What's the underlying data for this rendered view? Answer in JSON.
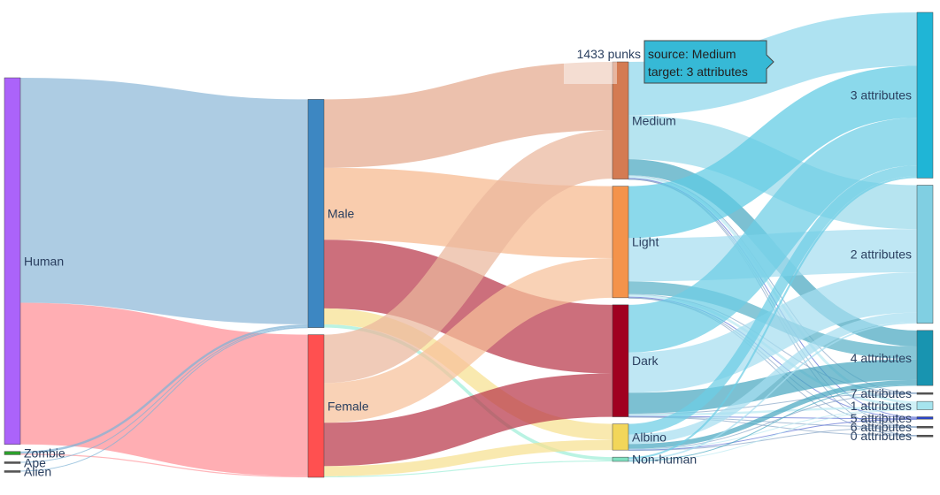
{
  "chart_data": {
    "type": "sankey",
    "value_unit": "punks",
    "nodes": [
      {
        "id": "human",
        "label": "Human",
        "column": 0,
        "color": "#ab63fa"
      },
      {
        "id": "zombie",
        "label": "Zombie",
        "column": 0,
        "color": "#2ca02c"
      },
      {
        "id": "ape",
        "label": "Ape",
        "column": 0,
        "color": "#555555"
      },
      {
        "id": "alien",
        "label": "Alien",
        "column": 0,
        "color": "#555555"
      },
      {
        "id": "male",
        "label": "Male",
        "column": 1,
        "color": "#3d87c2"
      },
      {
        "id": "female",
        "label": "Female",
        "column": 1,
        "color": "#ff5050"
      },
      {
        "id": "medium",
        "label": "Medium",
        "column": 2,
        "color": "#d47b52"
      },
      {
        "id": "light",
        "label": "Light",
        "column": 2,
        "color": "#f4934b"
      },
      {
        "id": "dark",
        "label": "Dark",
        "column": 2,
        "color": "#a00020"
      },
      {
        "id": "albino",
        "label": "Albino",
        "column": 2,
        "color": "#f2d65a"
      },
      {
        "id": "nonhuman",
        "label": "Non-human",
        "column": 2,
        "color": "#7fe0c0"
      },
      {
        "id": "a3",
        "label": "3 attributes",
        "column": 3,
        "color": "#1fb5d6"
      },
      {
        "id": "a2",
        "label": "2 attributes",
        "column": 3,
        "color": "#80cfe2"
      },
      {
        "id": "a4",
        "label": "4 attributes",
        "column": 3,
        "color": "#1894b0"
      },
      {
        "id": "a7",
        "label": "7 attributes",
        "column": 3,
        "color": "#555555"
      },
      {
        "id": "a1",
        "label": "1 attributes",
        "column": 3,
        "color": "#a6e4ee"
      },
      {
        "id": "a5",
        "label": "5 attributes",
        "column": 3,
        "color": "#2a44c8"
      },
      {
        "id": "a6",
        "label": "6 attributes",
        "column": 3,
        "color": "#555555"
      },
      {
        "id": "a0",
        "label": "0 attributes",
        "column": 3,
        "color": "#555555"
      }
    ],
    "links": [
      {
        "source": "human",
        "target": "male",
        "value": 6039,
        "color": "#8db9d8"
      },
      {
        "source": "human",
        "target": "female",
        "value": 3801,
        "color": "#ff8f95"
      },
      {
        "source": "zombie",
        "target": "male",
        "value": 60,
        "color": "#7fb3d5"
      },
      {
        "source": "zombie",
        "target": "female",
        "value": 28,
        "color": "#ff9aa0"
      },
      {
        "source": "ape",
        "target": "male",
        "value": 18,
        "color": "#7fb3d5"
      },
      {
        "source": "alien",
        "target": "male",
        "value": 9,
        "color": "#7fb3d5"
      },
      {
        "source": "male",
        "target": "medium",
        "value": 1837,
        "color": "#e4a98d"
      },
      {
        "source": "male",
        "target": "light",
        "value": 1930,
        "color": "#f6b98e"
      },
      {
        "source": "male",
        "target": "dark",
        "value": 1843,
        "color": "#b8374a"
      },
      {
        "source": "male",
        "target": "albino",
        "value": 429,
        "color": "#f6e190"
      },
      {
        "source": "male",
        "target": "nonhuman",
        "value": 87,
        "color": "#9fefd8"
      },
      {
        "source": "female",
        "target": "medium",
        "value": 1299,
        "color": "#eab79c"
      },
      {
        "source": "female",
        "target": "light",
        "value": 1066,
        "color": "#f7c19a"
      },
      {
        "source": "female",
        "target": "dark",
        "value": 1163,
        "color": "#b8374a"
      },
      {
        "source": "female",
        "target": "albino",
        "value": 273,
        "color": "#f6e190"
      },
      {
        "source": "female",
        "target": "nonhuman",
        "value": 28,
        "color": "#9fefd8"
      },
      {
        "source": "medium",
        "target": "a3",
        "value": 1433,
        "color": "#8fd7ec"
      },
      {
        "source": "medium",
        "target": "a2",
        "value": 1180,
        "color": "#9ad9ea"
      },
      {
        "source": "medium",
        "target": "a4",
        "value": 430,
        "color": "#4aa7c0"
      },
      {
        "source": "medium",
        "target": "a7",
        "value": 4,
        "color": "#8aa7c8"
      },
      {
        "source": "medium",
        "target": "a1",
        "value": 70,
        "color": "#bdeaf2"
      },
      {
        "source": "medium",
        "target": "a5",
        "value": 20,
        "color": "#5d6fd4"
      },
      {
        "source": "medium",
        "target": "a6",
        "value": 5,
        "color": "#8aa7c8"
      },
      {
        "source": "medium",
        "target": "a0",
        "value": 4,
        "color": "#8aa7c8"
      },
      {
        "source": "light",
        "target": "a3",
        "value": 1395,
        "color": "#5ecbe3"
      },
      {
        "source": "light",
        "target": "a2",
        "value": 1160,
        "color": "#a6def0"
      },
      {
        "source": "light",
        "target": "a4",
        "value": 340,
        "color": "#5ab1c7"
      },
      {
        "source": "light",
        "target": "a7",
        "value": 4,
        "color": "#8aa7c8"
      },
      {
        "source": "light",
        "target": "a1",
        "value": 68,
        "color": "#bdeaf2"
      },
      {
        "source": "light",
        "target": "a5",
        "value": 20,
        "color": "#5d6fd4"
      },
      {
        "source": "light",
        "target": "a6",
        "value": 5,
        "color": "#8aa7c8"
      },
      {
        "source": "light",
        "target": "a0",
        "value": 4,
        "color": "#8aa7c8"
      },
      {
        "source": "dark",
        "target": "a3",
        "value": 1280,
        "color": "#6ccde4"
      },
      {
        "source": "dark",
        "target": "a2",
        "value": 1080,
        "color": "#a6def0"
      },
      {
        "source": "dark",
        "target": "a4",
        "value": 560,
        "color": "#4aa7c0"
      },
      {
        "source": "dark",
        "target": "a7",
        "value": 4,
        "color": "#8aa7c8"
      },
      {
        "source": "dark",
        "target": "a1",
        "value": 58,
        "color": "#bdeaf2"
      },
      {
        "source": "dark",
        "target": "a5",
        "value": 16,
        "color": "#5d6fd4"
      },
      {
        "source": "dark",
        "target": "a6",
        "value": 4,
        "color": "#8aa7c8"
      },
      {
        "source": "dark",
        "target": "a0",
        "value": 4,
        "color": "#8aa7c8"
      },
      {
        "source": "albino",
        "target": "a3",
        "value": 290,
        "color": "#6ccde4"
      },
      {
        "source": "albino",
        "target": "a2",
        "value": 250,
        "color": "#a6def0"
      },
      {
        "source": "albino",
        "target": "a4",
        "value": 130,
        "color": "#4aa7c0"
      },
      {
        "source": "albino",
        "target": "a7",
        "value": 2,
        "color": "#8aa7c8"
      },
      {
        "source": "albino",
        "target": "a1",
        "value": 20,
        "color": "#bdeaf2"
      },
      {
        "source": "albino",
        "target": "a5",
        "value": 8,
        "color": "#5d6fd4"
      },
      {
        "source": "albino",
        "target": "a6",
        "value": 2,
        "color": "#8aa7c8"
      },
      {
        "source": "nonhuman",
        "target": "a3",
        "value": 50,
        "color": "#6ccde4"
      },
      {
        "source": "nonhuman",
        "target": "a2",
        "value": 40,
        "color": "#a6def0"
      },
      {
        "source": "nonhuman",
        "target": "a4",
        "value": 18,
        "color": "#4aa7c0"
      },
      {
        "source": "nonhuman",
        "target": "a1",
        "value": 7,
        "color": "#bdeaf2"
      }
    ],
    "hover": {
      "value_label": "1433 punks",
      "source_line": "source: Medium",
      "target_line": "target: 3 attributes"
    }
  }
}
